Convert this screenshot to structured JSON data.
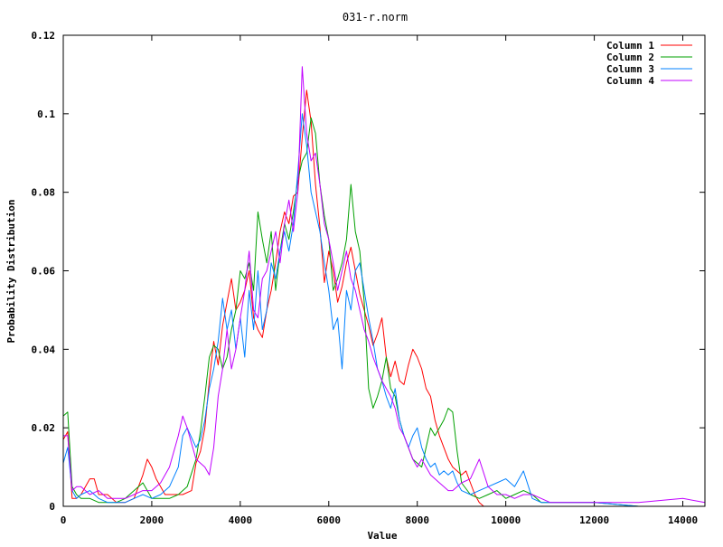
{
  "chart_data": {
    "type": "line",
    "title": "031-r.norm",
    "xlabel": "Value",
    "ylabel": "Probability Distribution",
    "xlim": [
      0,
      14500
    ],
    "ylim": [
      0,
      0.12
    ],
    "x_ticks": [
      0,
      2000,
      4000,
      6000,
      8000,
      10000,
      12000,
      14000
    ],
    "x_tick_labels": [
      "0",
      "2000",
      "4000",
      "6000",
      "8000",
      "10000",
      "12000",
      "14000"
    ],
    "y_ticks": [
      0,
      0.02,
      0.04,
      0.06,
      0.08,
      0.1,
      0.12
    ],
    "y_tick_labels": [
      "0",
      "0.02",
      "0.04",
      "0.06",
      "0.08",
      "0.1",
      "0.12"
    ],
    "grid": false,
    "legend_position": "top-right",
    "series": [
      {
        "name": "Column 1",
        "color": "#ff0000",
        "x": [
          0,
          100,
          200,
          300,
          400,
          600,
          700,
          800,
          1000,
          1200,
          1400,
          1600,
          1800,
          1900,
          2000,
          2100,
          2200,
          2300,
          2500,
          2700,
          2900,
          3000,
          3100,
          3200,
          3300,
          3400,
          3500,
          3600,
          3700,
          3800,
          3900,
          4000,
          4100,
          4200,
          4300,
          4400,
          4500,
          4600,
          4700,
          4800,
          4900,
          5000,
          5100,
          5200,
          5300,
          5400,
          5500,
          5600,
          5700,
          5800,
          5900,
          6000,
          6100,
          6200,
          6300,
          6400,
          6500,
          6600,
          6700,
          6800,
          6900,
          7000,
          7100,
          7200,
          7300,
          7400,
          7500,
          7600,
          7700,
          7800,
          7900,
          8000,
          8100,
          8200,
          8300,
          8400,
          8500,
          8600,
          8700,
          8800,
          8900,
          9000,
          9100,
          9200,
          9300,
          9400,
          9500,
          10000,
          11000,
          12000,
          13000,
          14500
        ],
        "y": [
          0.017,
          0.019,
          0.002,
          0.002,
          0.003,
          0.007,
          0.007,
          0.003,
          0.003,
          0.001,
          0.001,
          0.002,
          0.008,
          0.012,
          0.01,
          0.007,
          0.005,
          0.003,
          0.003,
          0.003,
          0.004,
          0.011,
          0.014,
          0.02,
          0.032,
          0.042,
          0.036,
          0.046,
          0.052,
          0.058,
          0.05,
          0.052,
          0.055,
          0.06,
          0.048,
          0.045,
          0.043,
          0.05,
          0.055,
          0.062,
          0.07,
          0.075,
          0.072,
          0.079,
          0.08,
          0.094,
          0.106,
          0.098,
          0.082,
          0.071,
          0.057,
          0.065,
          0.06,
          0.052,
          0.056,
          0.062,
          0.066,
          0.06,
          0.054,
          0.05,
          0.046,
          0.041,
          0.044,
          0.048,
          0.038,
          0.033,
          0.037,
          0.032,
          0.031,
          0.036,
          0.04,
          0.038,
          0.035,
          0.03,
          0.028,
          0.022,
          0.018,
          0.015,
          0.012,
          0.01,
          0.009,
          0.008,
          0.009,
          0.006,
          0.003,
          0.001,
          0.0,
          0.0,
          0.0,
          0.0,
          0.0,
          0.0
        ]
      },
      {
        "name": "Column 2",
        "color": "#00a000",
        "x": [
          0,
          100,
          200,
          300,
          400,
          600,
          800,
          1000,
          1200,
          1400,
          1600,
          1800,
          2000,
          2200,
          2400,
          2600,
          2800,
          3000,
          3100,
          3200,
          3300,
          3400,
          3500,
          3600,
          3700,
          3800,
          3900,
          4000,
          4100,
          4200,
          4300,
          4400,
          4500,
          4600,
          4700,
          4800,
          4900,
          5000,
          5100,
          5200,
          5300,
          5400,
          5500,
          5600,
          5700,
          5800,
          5900,
          6000,
          6100,
          6200,
          6300,
          6400,
          6500,
          6600,
          6700,
          6800,
          6900,
          7000,
          7100,
          7200,
          7300,
          7400,
          7500,
          7600,
          7700,
          7800,
          7900,
          8000,
          8100,
          8200,
          8300,
          8400,
          8500,
          8600,
          8700,
          8800,
          8900,
          9000,
          9200,
          9400,
          9600,
          9800,
          10000,
          10200,
          10400,
          10600,
          10800,
          11000,
          12000,
          13000,
          14500
        ],
        "y": [
          0.023,
          0.024,
          0.005,
          0.003,
          0.002,
          0.002,
          0.001,
          0.001,
          0.001,
          0.002,
          0.004,
          0.006,
          0.002,
          0.002,
          0.002,
          0.003,
          0.005,
          0.012,
          0.019,
          0.028,
          0.038,
          0.041,
          0.04,
          0.035,
          0.038,
          0.045,
          0.05,
          0.06,
          0.058,
          0.062,
          0.055,
          0.075,
          0.068,
          0.062,
          0.07,
          0.055,
          0.065,
          0.072,
          0.068,
          0.075,
          0.083,
          0.088,
          0.09,
          0.099,
          0.095,
          0.082,
          0.074,
          0.068,
          0.055,
          0.058,
          0.062,
          0.068,
          0.082,
          0.07,
          0.065,
          0.052,
          0.03,
          0.025,
          0.028,
          0.032,
          0.038,
          0.03,
          0.028,
          0.022,
          0.018,
          0.015,
          0.012,
          0.011,
          0.01,
          0.015,
          0.02,
          0.018,
          0.02,
          0.022,
          0.025,
          0.024,
          0.014,
          0.006,
          0.003,
          0.002,
          0.003,
          0.004,
          0.002,
          0.003,
          0.004,
          0.003,
          0.001,
          0.001,
          0.001,
          0.0,
          0.0
        ]
      },
      {
        "name": "Column 3",
        "color": "#0080ff",
        "x": [
          0,
          100,
          200,
          300,
          400,
          600,
          800,
          1000,
          1200,
          1400,
          1600,
          1800,
          2000,
          2200,
          2400,
          2600,
          2700,
          2800,
          3000,
          3100,
          3200,
          3300,
          3400,
          3500,
          3600,
          3700,
          3800,
          3900,
          4000,
          4100,
          4200,
          4300,
          4400,
          4500,
          4600,
          4700,
          4800,
          4900,
          5000,
          5100,
          5200,
          5300,
          5400,
          5500,
          5600,
          5700,
          5800,
          5900,
          6000,
          6100,
          6200,
          6300,
          6400,
          6500,
          6600,
          6700,
          6800,
          6900,
          7000,
          7100,
          7200,
          7300,
          7400,
          7500,
          7600,
          7700,
          7800,
          7900,
          8000,
          8100,
          8200,
          8300,
          8400,
          8500,
          8600,
          8700,
          8800,
          8900,
          9000,
          9200,
          9400,
          9600,
          9800,
          10000,
          10200,
          10400,
          10600,
          10800,
          11000,
          12000,
          13000,
          14500
        ],
        "y": [
          0.011,
          0.015,
          0.004,
          0.002,
          0.003,
          0.004,
          0.002,
          0.001,
          0.001,
          0.001,
          0.002,
          0.003,
          0.002,
          0.003,
          0.005,
          0.01,
          0.018,
          0.02,
          0.015,
          0.017,
          0.022,
          0.03,
          0.035,
          0.042,
          0.053,
          0.045,
          0.05,
          0.04,
          0.048,
          0.038,
          0.055,
          0.045,
          0.06,
          0.045,
          0.05,
          0.062,
          0.058,
          0.065,
          0.07,
          0.065,
          0.072,
          0.085,
          0.1,
          0.092,
          0.08,
          0.075,
          0.07,
          0.062,
          0.055,
          0.045,
          0.048,
          0.035,
          0.055,
          0.05,
          0.06,
          0.062,
          0.055,
          0.048,
          0.042,
          0.035,
          0.032,
          0.028,
          0.025,
          0.03,
          0.022,
          0.018,
          0.015,
          0.018,
          0.02,
          0.015,
          0.012,
          0.01,
          0.011,
          0.008,
          0.009,
          0.008,
          0.009,
          0.006,
          0.004,
          0.003,
          0.004,
          0.005,
          0.006,
          0.007,
          0.005,
          0.009,
          0.002,
          0.001,
          0.001,
          0.001,
          0.0,
          0.0
        ]
      },
      {
        "name": "Column 4",
        "color": "#c000ff",
        "x": [
          0,
          100,
          200,
          300,
          400,
          600,
          800,
          1000,
          1200,
          1400,
          1600,
          1800,
          2000,
          2200,
          2400,
          2500,
          2600,
          2700,
          2800,
          3000,
          3200,
          3300,
          3400,
          3500,
          3600,
          3700,
          3800,
          3900,
          4000,
          4100,
          4200,
          4300,
          4400,
          4500,
          4600,
          4700,
          4800,
          4900,
          5000,
          5100,
          5200,
          5300,
          5400,
          5500,
          5600,
          5700,
          5800,
          5900,
          6000,
          6100,
          6200,
          6300,
          6400,
          6500,
          6600,
          6700,
          6800,
          6900,
          7000,
          7100,
          7200,
          7300,
          7400,
          7500,
          7600,
          7700,
          7800,
          7900,
          8000,
          8100,
          8200,
          8300,
          8400,
          8500,
          8600,
          8700,
          8800,
          8900,
          9000,
          9200,
          9400,
          9600,
          9800,
          10000,
          10200,
          10400,
          10600,
          10800,
          11000,
          12000,
          13000,
          14000,
          14500
        ],
        "y": [
          0.018,
          0.018,
          0.004,
          0.005,
          0.005,
          0.003,
          0.004,
          0.002,
          0.002,
          0.002,
          0.003,
          0.004,
          0.004,
          0.006,
          0.01,
          0.014,
          0.018,
          0.023,
          0.02,
          0.012,
          0.01,
          0.008,
          0.015,
          0.028,
          0.035,
          0.045,
          0.035,
          0.04,
          0.048,
          0.055,
          0.065,
          0.05,
          0.048,
          0.058,
          0.06,
          0.065,
          0.07,
          0.062,
          0.072,
          0.078,
          0.07,
          0.08,
          0.112,
          0.095,
          0.088,
          0.09,
          0.082,
          0.072,
          0.068,
          0.062,
          0.055,
          0.06,
          0.065,
          0.058,
          0.055,
          0.05,
          0.045,
          0.042,
          0.038,
          0.035,
          0.032,
          0.03,
          0.028,
          0.025,
          0.02,
          0.018,
          0.015,
          0.012,
          0.01,
          0.012,
          0.01,
          0.008,
          0.007,
          0.006,
          0.005,
          0.004,
          0.004,
          0.005,
          0.006,
          0.007,
          0.012,
          0.005,
          0.003,
          0.003,
          0.002,
          0.003,
          0.003,
          0.002,
          0.001,
          0.001,
          0.001,
          0.002,
          0.001
        ]
      }
    ]
  }
}
